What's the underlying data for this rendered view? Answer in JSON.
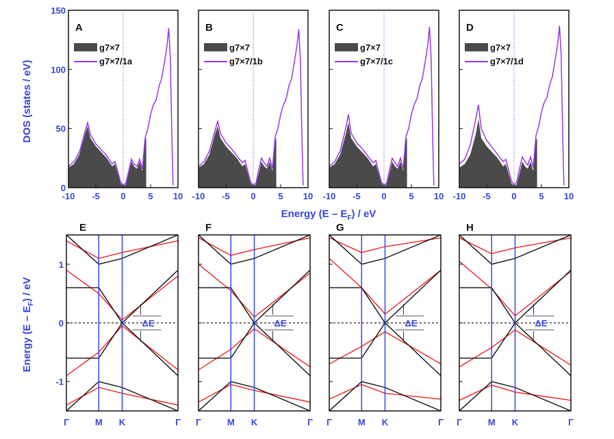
{
  "colors": {
    "axis_text": "#3344dd",
    "dos_fill": "#4a4a4a",
    "dos_line": "#9933ee",
    "band_black": "#111111",
    "band_red": "#ee2222",
    "vline": "#3344ee",
    "fermi": "#222222"
  },
  "labels": {
    "dos_ylabel": "DOS (states / eV)",
    "dos_xlabel": "Energy (E – E",
    "dos_xlabel_sub": "F",
    "dos_xlabel_tail": ") / eV",
    "band_ylabel": "Energy (E – E",
    "band_ylabel_sub": "F",
    "band_ylabel_tail": ") / eV",
    "delta_e": "ΔE"
  },
  "chart_data": [
    {
      "type": "area",
      "title": "A",
      "legend": [
        "g7×7",
        "g7×7/1a"
      ],
      "xlabel": "Energy (E – E_F) / eV",
      "ylabel": "DOS (states / eV)",
      "xlim": [
        -10,
        10
      ],
      "ylim": [
        0,
        150
      ],
      "xticks": [
        -10,
        -5,
        0,
        5,
        10
      ],
      "yticks": [
        0,
        50,
        100,
        150
      ],
      "series": [
        {
          "name": "g7×7",
          "x": [
            -10,
            -9,
            -8,
            -7,
            -6.5,
            -6,
            -5,
            -4,
            -3,
            -2,
            -1.5,
            -1,
            -0.5,
            0,
            0.5,
            1,
            1.5,
            2,
            2.5,
            3,
            3.5,
            4,
            4.2
          ],
          "y": [
            17,
            20,
            28,
            45,
            52,
            42,
            35,
            30,
            25,
            18,
            20,
            12,
            4,
            1,
            3,
            12,
            22,
            18,
            16,
            22,
            14,
            40,
            42
          ]
        },
        {
          "name": "g7×7/1a",
          "x": [
            -10,
            -9,
            -8,
            -7,
            -6.5,
            -6,
            -5,
            -4,
            -3,
            -2,
            -1.5,
            -1,
            -0.5,
            0,
            0.5,
            1,
            1.5,
            2,
            2.5,
            3,
            3.5,
            4,
            4.5,
            5,
            5.5,
            6,
            6.5,
            7,
            7.5,
            8,
            8.3,
            8.6,
            8.9,
            9.1
          ],
          "y": [
            18,
            22,
            30,
            47,
            55,
            45,
            37,
            32,
            27,
            20,
            22,
            14,
            5,
            2,
            4,
            14,
            24,
            20,
            18,
            24,
            16,
            42,
            50,
            62,
            70,
            74,
            85,
            92,
            105,
            120,
            135,
            110,
            40,
            2
          ]
        }
      ],
      "vline_x": 0
    },
    {
      "type": "area",
      "title": "B",
      "legend": [
        "g7×7",
        "g7×7/1b"
      ],
      "xlim": [
        -10,
        10
      ],
      "ylim": [
        0,
        150
      ],
      "xticks": [
        -10,
        -5,
        0,
        5,
        10
      ],
      "series": [
        {
          "name": "g7×7",
          "x": [
            -10,
            -9,
            -8,
            -7,
            -6.5,
            -6,
            -5,
            -4,
            -3,
            -2,
            -1.5,
            -1,
            -0.5,
            0,
            0.5,
            1,
            1.5,
            2,
            2.5,
            3,
            3.5,
            4,
            4.2
          ],
          "y": [
            17,
            20,
            28,
            45,
            52,
            42,
            35,
            30,
            25,
            18,
            20,
            12,
            4,
            1,
            3,
            12,
            22,
            18,
            16,
            22,
            14,
            40,
            42
          ]
        },
        {
          "name": "g7×7/1b",
          "x": [
            -10,
            -9,
            -8,
            -7,
            -6.5,
            -6,
            -5,
            -4,
            -3,
            -2,
            -1.5,
            -1,
            -0.5,
            0,
            0.5,
            1,
            1.5,
            2,
            2.5,
            3,
            3.5,
            4,
            4.5,
            5,
            5.5,
            6,
            6.5,
            7,
            7.5,
            8,
            8.3,
            8.6,
            8.9,
            9.1
          ],
          "y": [
            18,
            22,
            31,
            48,
            56,
            46,
            38,
            33,
            27,
            21,
            23,
            14,
            5,
            2,
            4,
            15,
            25,
            21,
            18,
            25,
            16,
            43,
            50,
            62,
            70,
            75,
            86,
            92,
            106,
            121,
            134,
            108,
            40,
            2
          ]
        }
      ],
      "vline_x": 0
    },
    {
      "type": "area",
      "title": "C",
      "legend": [
        "g7×7",
        "g7×7/1c"
      ],
      "xlim": [
        -10,
        10
      ],
      "ylim": [
        0,
        150
      ],
      "xticks": [
        -10,
        -5,
        0,
        5,
        10
      ],
      "series": [
        {
          "name": "g7×7",
          "x": [
            -10,
            -9,
            -8,
            -7,
            -6.5,
            -6,
            -5,
            -4,
            -3,
            -2,
            -1.5,
            -1,
            -0.5,
            0,
            0.5,
            1,
            1.5,
            2,
            2.5,
            3,
            3.5,
            4,
            4.2
          ],
          "y": [
            17,
            20,
            28,
            45,
            55,
            42,
            35,
            30,
            25,
            18,
            20,
            12,
            4,
            1,
            3,
            12,
            22,
            18,
            16,
            22,
            14,
            40,
            42
          ]
        },
        {
          "name": "g7×7/1c",
          "x": [
            -10,
            -9,
            -8,
            -7,
            -6.5,
            -6,
            -5,
            -4,
            -3,
            -2,
            -1.5,
            -1,
            -0.5,
            0,
            0.5,
            1,
            1.5,
            2,
            2.5,
            3,
            3.5,
            4,
            4.5,
            5,
            5.5,
            6,
            6.5,
            7,
            7.5,
            8,
            8.3,
            8.6,
            8.9,
            9.1
          ],
          "y": [
            18,
            22,
            31,
            50,
            62,
            46,
            38,
            33,
            27,
            21,
            23,
            14,
            5,
            2,
            4,
            15,
            25,
            21,
            18,
            25,
            16,
            43,
            50,
            62,
            70,
            75,
            86,
            92,
            106,
            121,
            136,
            110,
            40,
            2
          ]
        }
      ],
      "vline_x": 0
    },
    {
      "type": "area",
      "title": "D",
      "legend": [
        "g7×7",
        "g7×7/1d"
      ],
      "xlim": [
        -10,
        10
      ],
      "ylim": [
        0,
        150
      ],
      "xticks": [
        -10,
        -5,
        0,
        5,
        10
      ],
      "series": [
        {
          "name": "g7×7",
          "x": [
            -10,
            -9,
            -8,
            -7,
            -6.5,
            -6,
            -5,
            -4,
            -3,
            -2,
            -1.5,
            -1,
            -0.5,
            0,
            0.5,
            1,
            1.5,
            2,
            2.5,
            3,
            3.5,
            4,
            4.2
          ],
          "y": [
            17,
            20,
            28,
            45,
            58,
            42,
            35,
            30,
            25,
            18,
            20,
            12,
            4,
            1,
            3,
            12,
            22,
            18,
            16,
            22,
            14,
            40,
            42
          ]
        },
        {
          "name": "g7×7/1d",
          "x": [
            -10,
            -9,
            -8,
            -7,
            -6.5,
            -6,
            -5,
            -4,
            -3,
            -2,
            -1.5,
            -1,
            -0.5,
            0,
            0.5,
            1,
            1.5,
            2,
            2.5,
            3,
            3.5,
            4,
            4.5,
            5,
            5.5,
            6,
            6.5,
            7,
            7.5,
            8,
            8.3,
            8.6,
            8.9,
            9.1
          ],
          "y": [
            20,
            24,
            36,
            58,
            70,
            50,
            40,
            34,
            28,
            22,
            24,
            15,
            6,
            2,
            5,
            16,
            26,
            22,
            19,
            26,
            17,
            44,
            52,
            64,
            72,
            76,
            87,
            94,
            108,
            123,
            137,
            112,
            40,
            2
          ]
        }
      ],
      "vline_x": 0
    },
    {
      "type": "line",
      "title": "E",
      "ylabel": "Energy (E – E_F) / eV",
      "ylim": [
        -1.5,
        1.5
      ],
      "yticks": [
        -1,
        0,
        1
      ],
      "xtick_labels": [
        "Γ",
        "M",
        "K",
        "Γ"
      ],
      "kpath": [
        0,
        0.58,
        1.0,
        2.0
      ],
      "delta_e": "ΔE",
      "black_bands": [
        {
          "x": [
            0,
            0.58,
            1.0,
            2.0
          ],
          "y": [
            0.6,
            0.6,
            0.0,
            0.9
          ]
        },
        {
          "x": [
            0,
            0.58,
            1.0,
            2.0
          ],
          "y": [
            -0.6,
            -0.6,
            0.0,
            -0.9
          ]
        },
        {
          "x": [
            0,
            0.58,
            1.0,
            2.0
          ],
          "y": [
            1.5,
            1.0,
            1.1,
            1.5
          ]
        },
        {
          "x": [
            0,
            0.58,
            1.0,
            2.0
          ],
          "y": [
            -1.5,
            -1.0,
            -1.1,
            -1.5
          ]
        }
      ],
      "red_bands": [
        {
          "x": [
            0,
            0.58,
            1.0,
            2.0
          ],
          "y": [
            0.9,
            0.5,
            0.05,
            0.8
          ]
        },
        {
          "x": [
            0,
            0.58,
            1.0,
            2.0
          ],
          "y": [
            -0.9,
            -0.5,
            -0.05,
            -0.8
          ]
        },
        {
          "x": [
            0,
            0.58,
            1.0,
            2.0
          ],
          "y": [
            1.4,
            1.1,
            1.2,
            1.4
          ]
        },
        {
          "x": [
            0,
            0.58,
            1.0,
            2.0
          ],
          "y": [
            -1.4,
            -1.1,
            -1.2,
            -1.4
          ]
        }
      ]
    },
    {
      "type": "line",
      "title": "F",
      "ylim": [
        -1.5,
        1.5
      ],
      "xtick_labels": [
        "Γ",
        "M",
        "K",
        "Γ"
      ],
      "kpath": [
        0,
        0.58,
        1.0,
        2.0
      ],
      "delta_e": "ΔE",
      "black_bands": [
        {
          "x": [
            0,
            0.58,
            1.0,
            2.0
          ],
          "y": [
            0.6,
            0.6,
            0.0,
            0.9
          ]
        },
        {
          "x": [
            0,
            0.58,
            1.0,
            2.0
          ],
          "y": [
            -0.6,
            -0.6,
            0.0,
            -0.9
          ]
        },
        {
          "x": [
            0,
            0.58,
            1.0,
            2.0
          ],
          "y": [
            1.5,
            1.0,
            1.1,
            1.5
          ]
        },
        {
          "x": [
            0,
            0.58,
            1.0,
            2.0
          ],
          "y": [
            -1.5,
            -1.0,
            -1.1,
            -1.5
          ]
        }
      ],
      "red_bands": [
        {
          "x": [
            0,
            0.58,
            1.0,
            2.0
          ],
          "y": [
            1.0,
            0.55,
            0.1,
            0.85
          ]
        },
        {
          "x": [
            0,
            0.58,
            1.0,
            2.0
          ],
          "y": [
            -0.8,
            -0.45,
            -0.1,
            -0.75
          ]
        },
        {
          "x": [
            0,
            0.58,
            1.0,
            2.0
          ],
          "y": [
            1.45,
            1.15,
            1.25,
            1.45
          ]
        },
        {
          "x": [
            0,
            0.58,
            1.0,
            2.0
          ],
          "y": [
            -1.35,
            -1.05,
            -1.15,
            -1.35
          ]
        }
      ]
    },
    {
      "type": "line",
      "title": "G",
      "ylim": [
        -1.5,
        1.5
      ],
      "xtick_labels": [
        "Γ",
        "M",
        "K",
        "Γ"
      ],
      "kpath": [
        0,
        0.58,
        1.0,
        2.0
      ],
      "delta_e": "ΔE",
      "black_bands": [
        {
          "x": [
            0,
            0.58,
            1.0,
            2.0
          ],
          "y": [
            0.6,
            0.6,
            0.0,
            0.9
          ]
        },
        {
          "x": [
            0,
            0.58,
            1.0,
            2.0
          ],
          "y": [
            -0.6,
            -0.6,
            0.0,
            -0.9
          ]
        },
        {
          "x": [
            0,
            0.58,
            1.0,
            2.0
          ],
          "y": [
            1.5,
            1.0,
            1.1,
            1.5
          ]
        },
        {
          "x": [
            0,
            0.58,
            1.0,
            2.0
          ],
          "y": [
            -1.5,
            -1.0,
            -1.1,
            -1.5
          ]
        }
      ],
      "red_bands": [
        {
          "x": [
            0,
            0.58,
            1.0,
            2.0
          ],
          "y": [
            1.1,
            0.6,
            0.15,
            0.9
          ]
        },
        {
          "x": [
            0,
            0.58,
            1.0,
            2.0
          ],
          "y": [
            -0.7,
            -0.4,
            -0.15,
            -0.7
          ]
        },
        {
          "x": [
            0,
            0.58,
            1.0,
            2.0
          ],
          "y": [
            1.45,
            1.2,
            1.3,
            1.45
          ]
        },
        {
          "x": [
            0,
            0.58,
            1.0,
            2.0
          ],
          "y": [
            -1.3,
            -1.05,
            -1.2,
            -1.3
          ]
        }
      ]
    },
    {
      "type": "line",
      "title": "H",
      "ylim": [
        -1.5,
        1.5
      ],
      "xtick_labels": [
        "Γ",
        "M",
        "K",
        "Γ"
      ],
      "kpath": [
        0,
        0.58,
        1.0,
        2.0
      ],
      "delta_e": "ΔE",
      "black_bands": [
        {
          "x": [
            0,
            0.58,
            1.0,
            2.0
          ],
          "y": [
            0.6,
            0.6,
            0.0,
            0.9
          ]
        },
        {
          "x": [
            0,
            0.58,
            1.0,
            2.0
          ],
          "y": [
            -0.6,
            -0.6,
            0.0,
            -0.9
          ]
        },
        {
          "x": [
            0,
            0.58,
            1.0,
            2.0
          ],
          "y": [
            1.5,
            1.0,
            1.1,
            1.5
          ]
        },
        {
          "x": [
            0,
            0.58,
            1.0,
            2.0
          ],
          "y": [
            -1.5,
            -1.0,
            -1.1,
            -1.5
          ]
        }
      ],
      "red_bands": [
        {
          "x": [
            0,
            0.58,
            1.0,
            2.0
          ],
          "y": [
            1.05,
            0.58,
            0.12,
            0.88
          ]
        },
        {
          "x": [
            0,
            0.58,
            1.0,
            2.0
          ],
          "y": [
            -0.75,
            -0.42,
            -0.12,
            -0.72
          ]
        },
        {
          "x": [
            0,
            0.58,
            1.0,
            2.0
          ],
          "y": [
            1.45,
            1.18,
            1.28,
            1.45
          ]
        },
        {
          "x": [
            0,
            0.58,
            1.0,
            2.0
          ],
          "y": [
            -1.32,
            -1.06,
            -1.18,
            -1.32
          ]
        }
      ]
    }
  ]
}
